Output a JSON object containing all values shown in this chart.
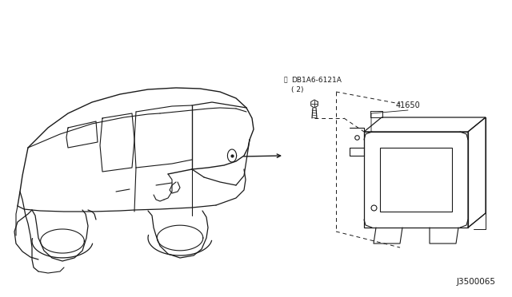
{
  "background_color": "#ffffff",
  "fig_width": 6.4,
  "fig_height": 3.72,
  "dpi": 100,
  "part_label_1": "DB1A6-6121A",
  "part_label_1b": "( 2)",
  "part_label_2": "41650",
  "footer_label": "J3500065",
  "text_color": "#1a1a1a",
  "line_color": "#1a1a1a",
  "font_size_label": 6.5,
  "font_size_footer": 7.5
}
